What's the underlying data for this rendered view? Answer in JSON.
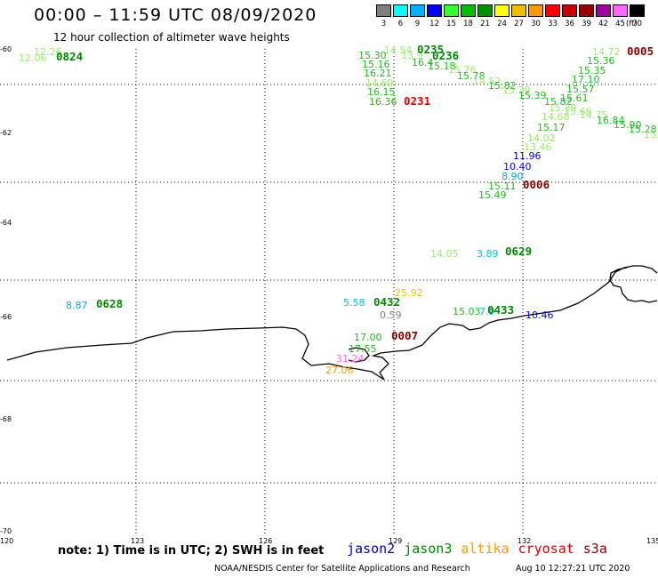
{
  "header": {
    "title": "00:00 – 11:59 UTC 08/09/2020",
    "subtitle": "12 hour collection of altimeter wave heights"
  },
  "legend_scale": {
    "unit": "(ft)",
    "items": [
      {
        "label": "3",
        "color": "#808080"
      },
      {
        "label": "6",
        "color": "#00ffff"
      },
      {
        "label": "9",
        "color": "#00b0ff"
      },
      {
        "label": "12",
        "color": "#0000ff"
      },
      {
        "label": "15",
        "color": "#33ff33"
      },
      {
        "label": "18",
        "color": "#00c000"
      },
      {
        "label": "21",
        "color": "#009000"
      },
      {
        "label": "24",
        "color": "#ffff00"
      },
      {
        "label": "27",
        "color": "#f0c000"
      },
      {
        "label": "30",
        "color": "#ff9900"
      },
      {
        "label": "33",
        "color": "#ff0000"
      },
      {
        "label": "36",
        "color": "#cc0000"
      },
      {
        "label": "39",
        "color": "#990000"
      },
      {
        "label": "42",
        "color": "#a000a0"
      },
      {
        "label": "45",
        "color": "#ff66ff"
      },
      {
        "label": "70",
        "color": "#000000"
      }
    ]
  },
  "map": {
    "lat_labels": [
      "-60",
      "-62",
      "-64",
      "-66",
      "-68",
      "-70"
    ],
    "lon_labels": [
      "120",
      "123",
      "126",
      "129",
      "132",
      "135"
    ],
    "wave_labels": [
      {
        "t": "12.26",
        "c": "#99ee66"
      },
      {
        "t": "12.06",
        "c": "#99ee66"
      },
      {
        "t": "14.54",
        "c": "#99ee66"
      },
      {
        "t": "15.30",
        "c": "#22bb22"
      },
      {
        "t": "13.9",
        "c": "#99ee66"
      },
      {
        "t": "15.16",
        "c": "#22bb22"
      },
      {
        "t": "16.4",
        "c": "#22bb22"
      },
      {
        "t": "15.18",
        "c": "#22bb22"
      },
      {
        "t": "16.21",
        "c": "#22bb22"
      },
      {
        "t": "15.76",
        "c": "#99ee66"
      },
      {
        "t": "15.78",
        "c": "#22bb22"
      },
      {
        "t": "14.69",
        "c": "#99ee66"
      },
      {
        "t": "14.52",
        "c": "#99ee66"
      },
      {
        "t": "15.82",
        "c": "#22bb22"
      },
      {
        "t": "16.15",
        "c": "#22bb22"
      },
      {
        "t": "15.39",
        "c": "#99ee66"
      },
      {
        "t": "15.39",
        "c": "#22bb22"
      },
      {
        "t": "16.36",
        "c": "#22bb22"
      },
      {
        "t": "14.72",
        "c": "#99ee66"
      },
      {
        "t": "15.36",
        "c": "#22bb22"
      },
      {
        "t": "15.35",
        "c": "#22bb22"
      },
      {
        "t": "17.10",
        "c": "#22bb22"
      },
      {
        "t": "15.57",
        "c": "#22bb22"
      },
      {
        "t": "15.61",
        "c": "#22bb22"
      },
      {
        "t": "15.82",
        "c": "#22bb22"
      },
      {
        "t": "15.39",
        "c": "#99ee66"
      },
      {
        "t": "15.66",
        "c": "#99ee66"
      },
      {
        "t": "14.68",
        "c": "#99ee66"
      },
      {
        "t": "14.75",
        "c": "#99ee66"
      },
      {
        "t": "16.84",
        "c": "#22bb22"
      },
      {
        "t": "15.90",
        "c": "#22bb22"
      },
      {
        "t": "15.28",
        "c": "#22bb22"
      },
      {
        "t": "15.",
        "c": "#99ee66"
      },
      {
        "t": "15.17",
        "c": "#22bb22"
      },
      {
        "t": "14.02",
        "c": "#99ee66"
      },
      {
        "t": "13.46",
        "c": "#99ee66"
      },
      {
        "t": "11.96",
        "c": "#0000ee"
      },
      {
        "t": "10.40",
        "c": "#0000ee"
      },
      {
        "t": "8.90",
        "c": "#00aaee"
      },
      {
        "t": "15.11",
        "c": "#22bb22"
      },
      {
        "t": "15.49",
        "c": "#22bb22"
      },
      {
        "t": "14.05",
        "c": "#99ee66"
      },
      {
        "t": "3.89",
        "c": "#00c8e0"
      },
      {
        "t": "8.87",
        "c": "#00aaee"
      },
      {
        "t": "5.58",
        "c": "#00c8e0"
      },
      {
        "t": "25.92",
        "c": "#f0c000"
      },
      {
        "t": "0.59",
        "c": "#808080"
      },
      {
        "t": "15.03",
        "c": "#22bb22"
      },
      {
        "t": "7.9",
        "c": "#00c8e0"
      },
      {
        "t": "10.46",
        "c": "#0000ee"
      },
      {
        "t": "17.00",
        "c": "#22bb22"
      },
      {
        "t": "17.55",
        "c": "#22bb22"
      },
      {
        "t": "31.24",
        "c": "#ff66ff"
      },
      {
        "t": "27.06",
        "c": "#f0a000"
      }
    ],
    "pass_labels": [
      {
        "t": "0824",
        "c": "#008800"
      },
      {
        "t": "0235",
        "c": "#008800"
      },
      {
        "t": "0236",
        "c": "#008800"
      },
      {
        "t": "0231",
        "c": "#dd0000"
      },
      {
        "t": "0005",
        "c": "#880000"
      },
      {
        "t": "0006",
        "c": "#880000"
      },
      {
        "t": "0629",
        "c": "#008800"
      },
      {
        "t": "0628",
        "c": "#008800"
      },
      {
        "t": "0432",
        "c": "#008800"
      },
      {
        "t": "0433",
        "c": "#008800"
      },
      {
        "t": "0007",
        "c": "#880000"
      }
    ]
  },
  "footer": {
    "note": "note:  1) Time is in UTC;  2) SWH is in feet",
    "satellites": [
      {
        "name": "jason2",
        "color": "#0000cc"
      },
      {
        "name": "jason3",
        "color": "#008800"
      },
      {
        "name": "altika",
        "color": "#ff9900"
      },
      {
        "name": "cryosat",
        "color": "#dd0000"
      },
      {
        "name": "s3a",
        "color": "#880000"
      }
    ],
    "credit": "NOAA/NESDIS Center for Satellite Applications and Research",
    "timestamp": "Aug 10 12:27:21 UTC 2020"
  }
}
